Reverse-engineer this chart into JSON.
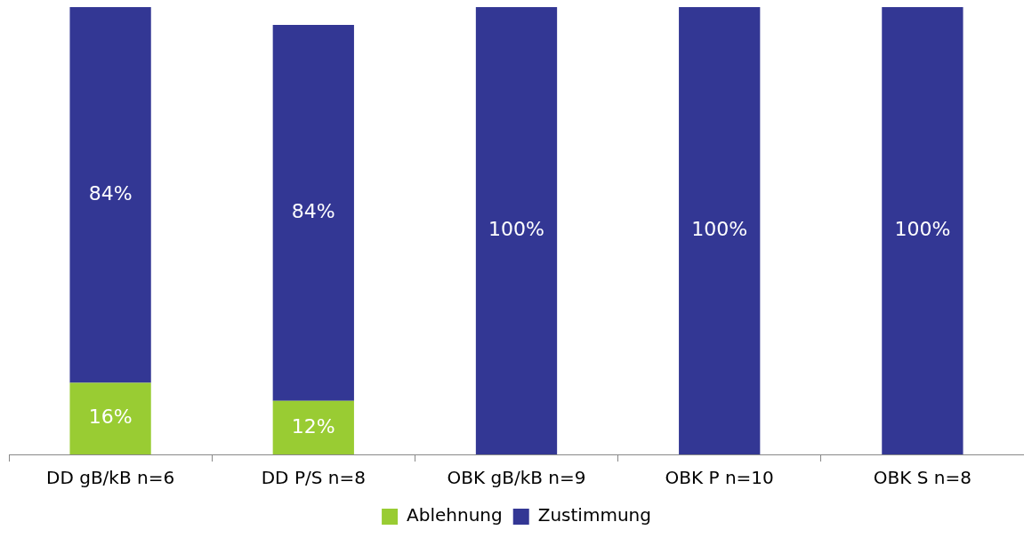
{
  "chart_data": {
    "type": "bar",
    "stacked": true,
    "categories": [
      "DD gB/kB n=6",
      "DD P/S n=8",
      "OBK gB/kB n=9",
      "OBK P n=10",
      "OBK S n=8"
    ],
    "series": [
      {
        "name": "Ablehnung",
        "color": "#99cc33",
        "values": [
          16,
          12,
          null,
          null,
          null
        ],
        "value_labels": [
          "16%",
          "12%",
          null,
          null,
          null
        ]
      },
      {
        "name": "Zustimmung",
        "color": "#333794",
        "values": [
          84,
          84,
          100,
          100,
          100
        ],
        "value_labels": [
          "84%",
          "84%",
          "100%",
          "100%",
          "100%"
        ]
      }
    ],
    "ylim": [
      0,
      100
    ],
    "tick_labels": "x",
    "legend": "bottom"
  }
}
